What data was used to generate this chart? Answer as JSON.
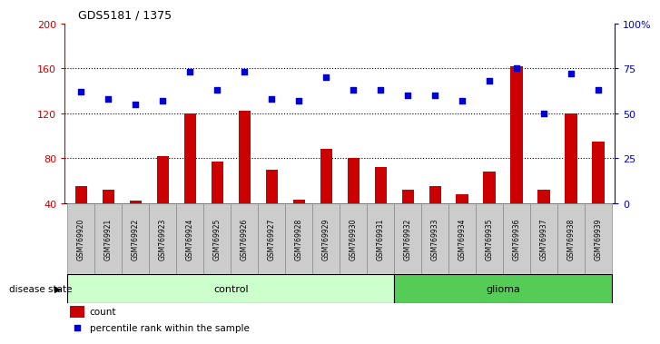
{
  "title": "GDS5181 / 1375",
  "samples": [
    "GSM769920",
    "GSM769921",
    "GSM769922",
    "GSM769923",
    "GSM769924",
    "GSM769925",
    "GSM769926",
    "GSM769927",
    "GSM769928",
    "GSM769929",
    "GSM769930",
    "GSM769931",
    "GSM769932",
    "GSM769933",
    "GSM769934",
    "GSM769935",
    "GSM769936",
    "GSM769937",
    "GSM769938",
    "GSM769939"
  ],
  "counts": [
    55,
    52,
    42,
    82,
    120,
    77,
    122,
    70,
    43,
    88,
    80,
    72,
    52,
    55,
    48,
    68,
    162,
    52,
    120,
    95
  ],
  "percentiles": [
    62,
    58,
    55,
    57,
    73,
    63,
    73,
    58,
    57,
    70,
    63,
    63,
    60,
    60,
    57,
    68,
    75,
    50,
    72,
    63
  ],
  "bar_color": "#cc0000",
  "dot_color": "#0000cc",
  "ylim_left": [
    40,
    200
  ],
  "ylim_right": [
    0,
    100
  ],
  "yticks_left": [
    40,
    80,
    120,
    160,
    200
  ],
  "yticks_right": [
    0,
    25,
    50,
    75,
    100
  ],
  "ytick_labels_right": [
    "0",
    "25",
    "50",
    "75",
    "100%"
  ],
  "control_count": 12,
  "glioma_count": 8,
  "control_label": "control",
  "glioma_label": "glioma",
  "disease_state_label": "disease state",
  "legend_count_label": "count",
  "legend_pct_label": "percentile rank within the sample",
  "bg_color": "#ffffff",
  "control_bg": "#ccffcc",
  "glioma_bg": "#55cc55",
  "xticklabel_bg": "#cccccc",
  "bar_width": 0.45,
  "dot_size": 25
}
